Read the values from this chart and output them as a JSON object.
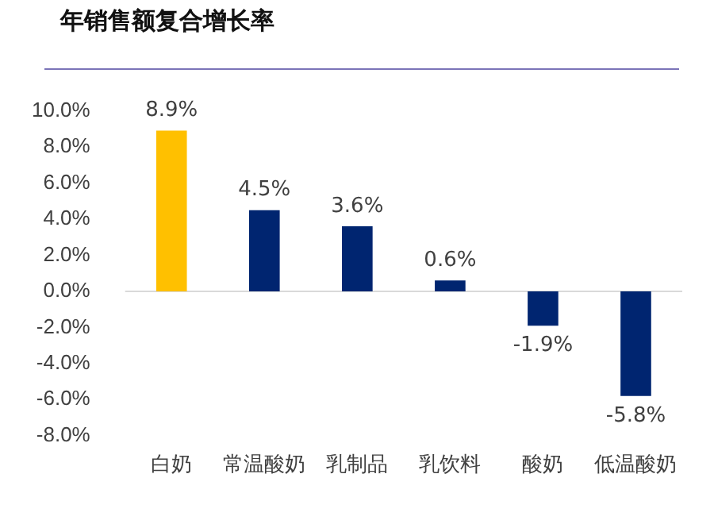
{
  "chart_data": {
    "type": "bar",
    "title": "年销售额复合增长率",
    "categories": [
      "白奶",
      "常温酸奶",
      "乳制品",
      "乳饮料",
      "酸奶",
      "低温酸奶"
    ],
    "values": [
      8.9,
      4.5,
      3.6,
      0.6,
      -1.9,
      -5.8
    ],
    "colors": [
      "#ffc000",
      "#002570",
      "#002570",
      "#002570",
      "#002570",
      "#002570"
    ],
    "value_labels": [
      "8.9%",
      "4.5%",
      "3.6%",
      "0.6%",
      "-1.9%",
      "-5.8%"
    ],
    "ylim": [
      -8,
      10
    ],
    "yticks": [
      {
        "value": -8,
        "label": "-8.0%"
      },
      {
        "value": -6,
        "label": "-6.0%"
      },
      {
        "value": -4,
        "label": "-4.0%"
      },
      {
        "value": -2,
        "label": "-2.0%"
      },
      {
        "value": 0,
        "label": "0.0%"
      },
      {
        "value": 2,
        "label": "2.0%"
      },
      {
        "value": 4,
        "label": "4.0%"
      },
      {
        "value": 6,
        "label": "6.0%"
      },
      {
        "value": 8,
        "label": "8.0%"
      },
      {
        "value": 10,
        "label": "10.0%"
      }
    ],
    "ref_lines": [
      {
        "axis": "y",
        "value": 0,
        "color": "#d9d9d9"
      }
    ],
    "grid": false,
    "legend": false
  }
}
